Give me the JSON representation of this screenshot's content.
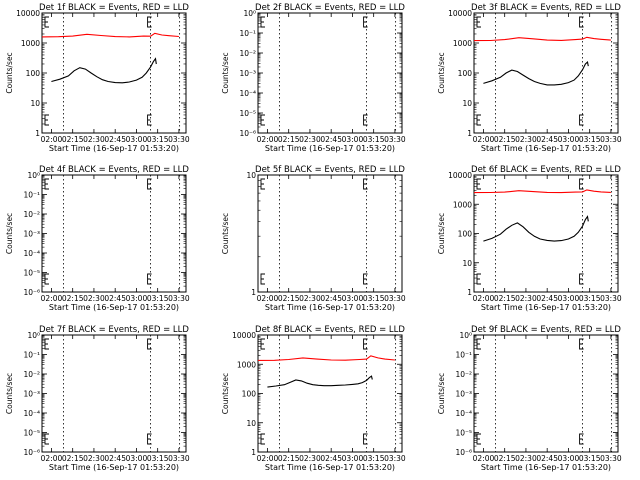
{
  "figure": {
    "colors": {
      "events": "#000000",
      "lld": "#ff0000",
      "marker_lines": "#000000",
      "background": "#ffffff"
    },
    "shared_axes": {
      "xticks": [
        "02:00",
        "02:15",
        "02:30",
        "02:45",
        "03:00",
        "03:15",
        "03:30"
      ],
      "xlabel": "Start Time (16-Sep-17 01:53:20)",
      "ylabel": "Counts/sec"
    }
  },
  "chart_data": [
    {
      "type": "line",
      "scale": "log",
      "title": "Det 1f BLACK = Events, RED = LLD",
      "xlabel": "Start Time (16-Sep-17 01:53:20)",
      "ylabel": "Counts/sec",
      "xlim": [
        "01:53:20",
        "03:35:00"
      ],
      "ylim": [
        1,
        10000
      ],
      "yticks": [
        "1",
        "10",
        "100",
        "1000",
        "10000"
      ],
      "xticks": [
        "02:00",
        "02:15",
        "02:30",
        "02:45",
        "03:00",
        "03:15",
        "03:30"
      ],
      "markers": [
        "02:08:30",
        "03:10:00",
        "03:30:30"
      ],
      "series": [
        {
          "color": "red",
          "x": [
            "01:53:20",
            "02:05:00",
            "02:15:00",
            "02:25:00",
            "02:35:00",
            "02:45:00",
            "02:55:00",
            "03:05:00",
            "03:10:00",
            "03:13:00",
            "03:18:00",
            "03:23:00",
            "03:30:00"
          ],
          "values": [
            1600,
            1620,
            1700,
            1950,
            1780,
            1630,
            1600,
            1700,
            1680,
            2100,
            1850,
            1750,
            1650
          ]
        },
        {
          "color": "black",
          "x": [
            "02:00:00",
            "02:06:00",
            "02:12:00",
            "02:16:00",
            "02:20:00",
            "02:24:00",
            "02:28:00",
            "02:32:00",
            "02:36:00",
            "02:40:00",
            "02:45:00",
            "02:50:00",
            "02:55:00",
            "03:00:00",
            "03:04:00",
            "03:07:00",
            "03:10:00",
            "03:12:00",
            "03:13:30",
            "03:14:00"
          ],
          "values": [
            52,
            62,
            80,
            118,
            150,
            135,
            100,
            75,
            60,
            52,
            48,
            47,
            50,
            58,
            72,
            100,
            160,
            240,
            300,
            200
          ]
        }
      ]
    },
    {
      "type": "line",
      "scale": "log",
      "title": "Det 2f BLACK = Events, RED = LLD",
      "xlabel": "Start Time (16-Sep-17 01:53:20)",
      "ylabel": "Counts/sec",
      "xlim": [
        "01:53:20",
        "03:35:00"
      ],
      "ylim": [
        1e-06,
        1
      ],
      "yticks": [
        "10⁰",
        "10⁻¹",
        "10⁻²",
        "10⁻³",
        "10⁻⁴",
        "10⁻⁵",
        "10⁻⁶"
      ],
      "xticks": [
        "02:00",
        "02:15",
        "02:30",
        "02:45",
        "03:00",
        "03:15",
        "03:30"
      ],
      "markers": [
        "02:08:30",
        "03:10:00",
        "03:30:30"
      ],
      "series": []
    },
    {
      "type": "line",
      "scale": "log",
      "title": "Det 3f BLACK = Events, RED = LLD",
      "xlabel": "Start Time (16-Sep-17 01:53:20)",
      "ylabel": "Counts/sec",
      "xlim": [
        "01:53:20",
        "03:35:00"
      ],
      "ylim": [
        1,
        10000
      ],
      "yticks": [
        "1",
        "10",
        "100",
        "1000",
        "10000"
      ],
      "xticks": [
        "02:00",
        "02:15",
        "02:30",
        "02:45",
        "03:00",
        "03:15",
        "03:30"
      ],
      "markers": [
        "02:08:30",
        "03:10:00",
        "03:30:30"
      ],
      "series": [
        {
          "color": "red",
          "x": [
            "01:53:20",
            "02:05:00",
            "02:15:00",
            "02:25:00",
            "02:35:00",
            "02:45:00",
            "02:55:00",
            "03:05:00",
            "03:10:00",
            "03:13:00",
            "03:18:00",
            "03:23:00",
            "03:30:00"
          ],
          "values": [
            1200,
            1210,
            1300,
            1500,
            1380,
            1250,
            1220,
            1300,
            1350,
            1550,
            1400,
            1330,
            1250
          ]
        },
        {
          "color": "black",
          "x": [
            "02:00:00",
            "02:06:00",
            "02:12:00",
            "02:16:00",
            "02:20:00",
            "02:24:00",
            "02:28:00",
            "02:32:00",
            "02:36:00",
            "02:40:00",
            "02:45:00",
            "02:50:00",
            "02:55:00",
            "03:00:00",
            "03:04:00",
            "03:07:00",
            "03:10:00",
            "03:12:00",
            "03:13:30",
            "03:14:00"
          ],
          "values": [
            45,
            55,
            72,
            100,
            125,
            112,
            85,
            65,
            52,
            45,
            40,
            40,
            42,
            48,
            58,
            80,
            130,
            200,
            230,
            170
          ]
        }
      ]
    },
    {
      "type": "line",
      "scale": "log",
      "title": "Det 4f BLACK = Events, RED = LLD",
      "xlabel": "Start Time (16-Sep-17 01:53:20)",
      "ylabel": "Counts/sec",
      "xlim": [
        "01:53:20",
        "03:35:00"
      ],
      "ylim": [
        1e-06,
        1
      ],
      "yticks": [
        "10⁰",
        "10⁻¹",
        "10⁻²",
        "10⁻³",
        "10⁻⁴",
        "10⁻⁵",
        "10⁻⁶"
      ],
      "xticks": [
        "02:00",
        "02:15",
        "02:30",
        "02:45",
        "03:00",
        "03:15",
        "03:30"
      ],
      "markers": [
        "02:08:30",
        "03:10:00",
        "03:30:30"
      ],
      "series": []
    },
    {
      "type": "line",
      "scale": "log",
      "title": "Det 5f BLACK = Events, RED = LLD",
      "xlabel": "Start Time (16-Sep-17 01:53:20)",
      "ylabel": "Counts/sec",
      "xlim": [
        "01:53:20",
        "03:35:00"
      ],
      "ylim": [
        1,
        10
      ],
      "yticks": [
        "1",
        "10"
      ],
      "xticks": [
        "02:00",
        "02:15",
        "02:30",
        "02:45",
        "03:00",
        "03:15",
        "03:30"
      ],
      "markers": [
        "02:08:30",
        "03:10:00",
        "03:30:30"
      ],
      "series": []
    },
    {
      "type": "line",
      "scale": "log",
      "title": "Det 6f BLACK = Events, RED = LLD",
      "xlabel": "Start Time (16-Sep-17 01:53:20)",
      "ylabel": "Counts/sec",
      "xlim": [
        "01:53:20",
        "03:35:00"
      ],
      "ylim": [
        1,
        10000
      ],
      "yticks": [
        "1",
        "10",
        "100",
        "1000",
        "10000"
      ],
      "xticks": [
        "02:00",
        "02:15",
        "02:30",
        "02:45",
        "03:00",
        "03:15",
        "03:30"
      ],
      "markers": [
        "02:08:30",
        "03:10:00",
        "03:30:30"
      ],
      "series": [
        {
          "color": "red",
          "x": [
            "01:53:20",
            "02:05:00",
            "02:15:00",
            "02:25:00",
            "02:35:00",
            "02:45:00",
            "02:55:00",
            "03:05:00",
            "03:10:00",
            "03:13:00",
            "03:18:00",
            "03:23:00",
            "03:30:00"
          ],
          "values": [
            2500,
            2520,
            2600,
            2900,
            2700,
            2550,
            2500,
            2600,
            2650,
            3100,
            2800,
            2650,
            2550
          ]
        },
        {
          "color": "black",
          "x": [
            "02:00:00",
            "02:06:00",
            "02:12:00",
            "02:16:00",
            "02:20:00",
            "02:24:00",
            "02:28:00",
            "02:32:00",
            "02:36:00",
            "02:40:00",
            "02:45:00",
            "02:50:00",
            "02:55:00",
            "03:00:00",
            "03:04:00",
            "03:07:00",
            "03:10:00",
            "03:12:00",
            "03:13:30",
            "03:14:00"
          ],
          "values": [
            55,
            68,
            95,
            140,
            190,
            230,
            170,
            110,
            80,
            65,
            58,
            55,
            57,
            65,
            80,
            110,
            180,
            300,
            380,
            260
          ]
        }
      ]
    },
    {
      "type": "line",
      "scale": "log",
      "title": "Det 7f BLACK = Events, RED = LLD",
      "xlabel": "Start Time (16-Sep-17 01:53:20)",
      "ylabel": "Counts/sec",
      "xlim": [
        "01:53:20",
        "03:35:00"
      ],
      "ylim": [
        1e-06,
        1
      ],
      "yticks": [
        "10⁰",
        "10⁻¹",
        "10⁻²",
        "10⁻³",
        "10⁻⁴",
        "10⁻⁵",
        "10⁻⁶"
      ],
      "xticks": [
        "02:00",
        "02:15",
        "02:30",
        "02:45",
        "03:00",
        "03:15",
        "03:30"
      ],
      "markers": [
        "02:08:30",
        "03:10:00",
        "03:30:30"
      ],
      "series": []
    },
    {
      "type": "line",
      "scale": "log",
      "title": "Det 8f BLACK = Events, RED = LLD",
      "xlabel": "Start Time (16-Sep-17 01:53:20)",
      "ylabel": "Counts/sec",
      "xlim": [
        "01:53:20",
        "03:35:00"
      ],
      "ylim": [
        1,
        10000
      ],
      "yticks": [
        "1",
        "10",
        "100",
        "1000",
        "10000"
      ],
      "xticks": [
        "02:00",
        "02:15",
        "02:30",
        "02:45",
        "03:00",
        "03:15",
        "03:30"
      ],
      "markers": [
        "02:08:30",
        "03:10:00",
        "03:30:30"
      ],
      "series": [
        {
          "color": "red",
          "x": [
            "01:53:20",
            "02:05:00",
            "02:15:00",
            "02:25:00",
            "02:35:00",
            "02:45:00",
            "02:55:00",
            "03:05:00",
            "03:10:00",
            "03:13:00",
            "03:18:00",
            "03:23:00",
            "03:30:00"
          ],
          "values": [
            1350,
            1360,
            1450,
            1650,
            1500,
            1400,
            1380,
            1450,
            1500,
            1950,
            1650,
            1500,
            1400
          ]
        },
        {
          "color": "black",
          "x": [
            "02:00:00",
            "02:06:00",
            "02:12:00",
            "02:16:00",
            "02:20:00",
            "02:24:00",
            "02:28:00",
            "02:32:00",
            "02:36:00",
            "02:40:00",
            "02:45:00",
            "02:50:00",
            "02:55:00",
            "03:00:00",
            "03:04:00",
            "03:07:00",
            "03:10:00",
            "03:12:00",
            "03:13:30",
            "03:14:00"
          ],
          "values": [
            165,
            180,
            200,
            240,
            290,
            270,
            225,
            200,
            190,
            185,
            185,
            190,
            195,
            205,
            215,
            235,
            280,
            350,
            390,
            300
          ]
        }
      ]
    },
    {
      "type": "line",
      "scale": "log",
      "title": "Det 9f BLACK = Events, RED = LLD",
      "xlabel": "Start Time (16-Sep-17 01:53:20)",
      "ylabel": "Counts/sec",
      "xlim": [
        "01:53:20",
        "03:35:00"
      ],
      "ylim": [
        1e-06,
        1
      ],
      "yticks": [
        "10⁰",
        "10⁻¹",
        "10⁻²",
        "10⁻³",
        "10⁻⁴",
        "10⁻⁵",
        "10⁻⁶"
      ],
      "xticks": [
        "02:00",
        "02:15",
        "02:30",
        "02:45",
        "03:00",
        "03:15",
        "03:30"
      ],
      "markers": [
        "02:08:30",
        "03:10:00",
        "03:30:30"
      ],
      "series": []
    }
  ]
}
